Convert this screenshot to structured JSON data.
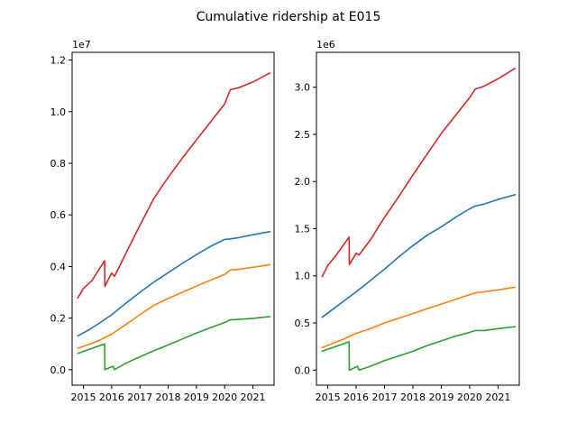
{
  "chart_data": {
    "type": "line",
    "title": "Cumulative ridership at E015",
    "colors": [
      "#1f77b4",
      "#ff7f0e",
      "#2ca02c",
      "#d62728"
    ],
    "grid": false,
    "panels": [
      {
        "offset_text": "1e7",
        "scale": 10000000,
        "xlim": [
          2014.6,
          2021.75
        ],
        "ylim": [
          -0.06,
          1.23
        ],
        "xticks": [
          {
            "value": 2015,
            "label": "2015"
          },
          {
            "value": 2016,
            "label": "2016"
          },
          {
            "value": 2017,
            "label": "2017"
          },
          {
            "value": 2018,
            "label": "2018"
          },
          {
            "value": 2019,
            "label": "2019"
          },
          {
            "value": 2020,
            "label": "2020"
          },
          {
            "value": 2021,
            "label": "2021"
          }
        ],
        "yticks": [
          {
            "value": 0.0,
            "label": "0.0"
          },
          {
            "value": 0.2,
            "label": "0.2"
          },
          {
            "value": 0.4,
            "label": "0.4"
          },
          {
            "value": 0.6,
            "label": "0.6"
          },
          {
            "value": 0.8,
            "label": "0.8"
          },
          {
            "value": 1.0,
            "label": "1.0"
          },
          {
            "value": 1.2,
            "label": "1.2"
          }
        ],
        "series": [
          {
            "color": "#1f77b4",
            "x": [
              2014.8,
              2015.2,
              2015.6,
              2016.0,
              2016.5,
              2017.0,
              2017.5,
              2018.0,
              2018.5,
              2019.0,
              2019.5,
              2020.0,
              2020.2,
              2020.5,
              2021.0,
              2021.6
            ],
            "y": [
              0.131,
              0.155,
              0.183,
              0.213,
              0.257,
              0.3,
              0.34,
              0.376,
              0.412,
              0.446,
              0.478,
              0.505,
              0.507,
              0.512,
              0.523,
              0.535
            ]
          },
          {
            "color": "#ff7f0e",
            "x": [
              2014.8,
              2015.2,
              2015.6,
              2016.0,
              2016.5,
              2017.0,
              2017.5,
              2018.0,
              2018.5,
              2019.0,
              2019.5,
              2020.0,
              2020.2,
              2020.5,
              2021.0,
              2021.6
            ],
            "y": [
              0.083,
              0.098,
              0.116,
              0.138,
              0.175,
              0.213,
              0.25,
              0.276,
              0.3,
              0.324,
              0.347,
              0.369,
              0.386,
              0.389,
              0.397,
              0.407
            ]
          },
          {
            "color": "#2ca02c",
            "x": [
              2014.8,
              2015.75,
              2015.76,
              2016.05,
              2016.1,
              2016.5,
              2017.0,
              2017.5,
              2018.0,
              2018.5,
              2019.0,
              2019.5,
              2020.0,
              2020.2,
              2020.5,
              2021.0,
              2021.6
            ],
            "y": [
              0.063,
              0.1,
              0.0,
              0.013,
              0.0,
              0.025,
              0.05,
              0.074,
              0.096,
              0.119,
              0.142,
              0.163,
              0.183,
              0.193,
              0.195,
              0.199,
              0.206
            ]
          },
          {
            "color": "#d62728",
            "x": [
              2014.8,
              2015.0,
              2015.3,
              2015.75,
              2015.76,
              2016.0,
              2016.1,
              2016.2,
              2016.5,
              2017.0,
              2017.5,
              2018.0,
              2018.5,
              2019.0,
              2019.5,
              2020.0,
              2020.2,
              2020.5,
              2021.0,
              2021.6
            ],
            "y": [
              0.278,
              0.315,
              0.345,
              0.422,
              0.323,
              0.375,
              0.362,
              0.383,
              0.45,
              0.56,
              0.665,
              0.745,
              0.82,
              0.89,
              0.96,
              1.03,
              1.085,
              1.093,
              1.115,
              1.15
            ]
          }
        ]
      },
      {
        "offset_text": "1e6",
        "scale": 1000000,
        "xlim": [
          2014.6,
          2021.75
        ],
        "ylim": [
          -0.16,
          3.37
        ],
        "xticks": [
          {
            "value": 2015,
            "label": "2015"
          },
          {
            "value": 2016,
            "label": "2016"
          },
          {
            "value": 2017,
            "label": "2017"
          },
          {
            "value": 2018,
            "label": "2018"
          },
          {
            "value": 2019,
            "label": "2019"
          },
          {
            "value": 2020,
            "label": "2020"
          },
          {
            "value": 2021,
            "label": "2021"
          }
        ],
        "yticks": [
          {
            "value": 0.0,
            "label": "0.0"
          },
          {
            "value": 0.5,
            "label": "0.5"
          },
          {
            "value": 1.0,
            "label": "1.0"
          },
          {
            "value": 1.5,
            "label": "1.5"
          },
          {
            "value": 2.0,
            "label": "2.0"
          },
          {
            "value": 2.5,
            "label": "2.5"
          },
          {
            "value": 3.0,
            "label": "3.0"
          }
        ],
        "series": [
          {
            "color": "#1f77b4",
            "x": [
              2014.8,
              2015.2,
              2015.6,
              2016.0,
              2016.5,
              2017.0,
              2017.5,
              2018.0,
              2018.5,
              2019.0,
              2019.5,
              2020.0,
              2020.2,
              2020.5,
              2021.0,
              2021.6
            ],
            "y": [
              0.56,
              0.65,
              0.74,
              0.83,
              0.95,
              1.07,
              1.2,
              1.32,
              1.43,
              1.52,
              1.62,
              1.71,
              1.74,
              1.76,
              1.81,
              1.86
            ]
          },
          {
            "color": "#ff7f0e",
            "x": [
              2014.8,
              2015.5,
              2016.0,
              2016.5,
              2017.0,
              2017.5,
              2018.0,
              2018.5,
              2019.0,
              2019.5,
              2020.0,
              2020.2,
              2020.5,
              2021.0,
              2021.6
            ],
            "y": [
              0.24,
              0.32,
              0.39,
              0.44,
              0.5,
              0.55,
              0.6,
              0.65,
              0.7,
              0.75,
              0.8,
              0.82,
              0.83,
              0.85,
              0.88
            ]
          },
          {
            "color": "#2ca02c",
            "x": [
              2014.8,
              2015.75,
              2015.76,
              2016.05,
              2016.1,
              2016.5,
              2017.0,
              2017.5,
              2018.0,
              2018.5,
              2019.0,
              2019.5,
              2020.0,
              2020.2,
              2020.5,
              2021.0,
              2021.6
            ],
            "y": [
              0.2,
              0.3,
              0.0,
              0.04,
              0.0,
              0.04,
              0.1,
              0.15,
              0.2,
              0.26,
              0.31,
              0.36,
              0.4,
              0.42,
              0.42,
              0.44,
              0.46
            ]
          },
          {
            "color": "#d62728",
            "x": [
              2014.8,
              2015.0,
              2015.3,
              2015.75,
              2015.76,
              2016.0,
              2016.1,
              2016.2,
              2016.5,
              2017.0,
              2017.5,
              2018.0,
              2018.5,
              2019.0,
              2019.5,
              2020.0,
              2020.2,
              2020.5,
              2021.0,
              2021.6
            ],
            "y": [
              0.99,
              1.11,
              1.22,
              1.41,
              1.12,
              1.24,
              1.22,
              1.26,
              1.38,
              1.62,
              1.84,
              2.07,
              2.29,
              2.51,
              2.7,
              2.89,
              2.98,
              3.01,
              3.09,
              3.2
            ]
          }
        ]
      }
    ]
  }
}
